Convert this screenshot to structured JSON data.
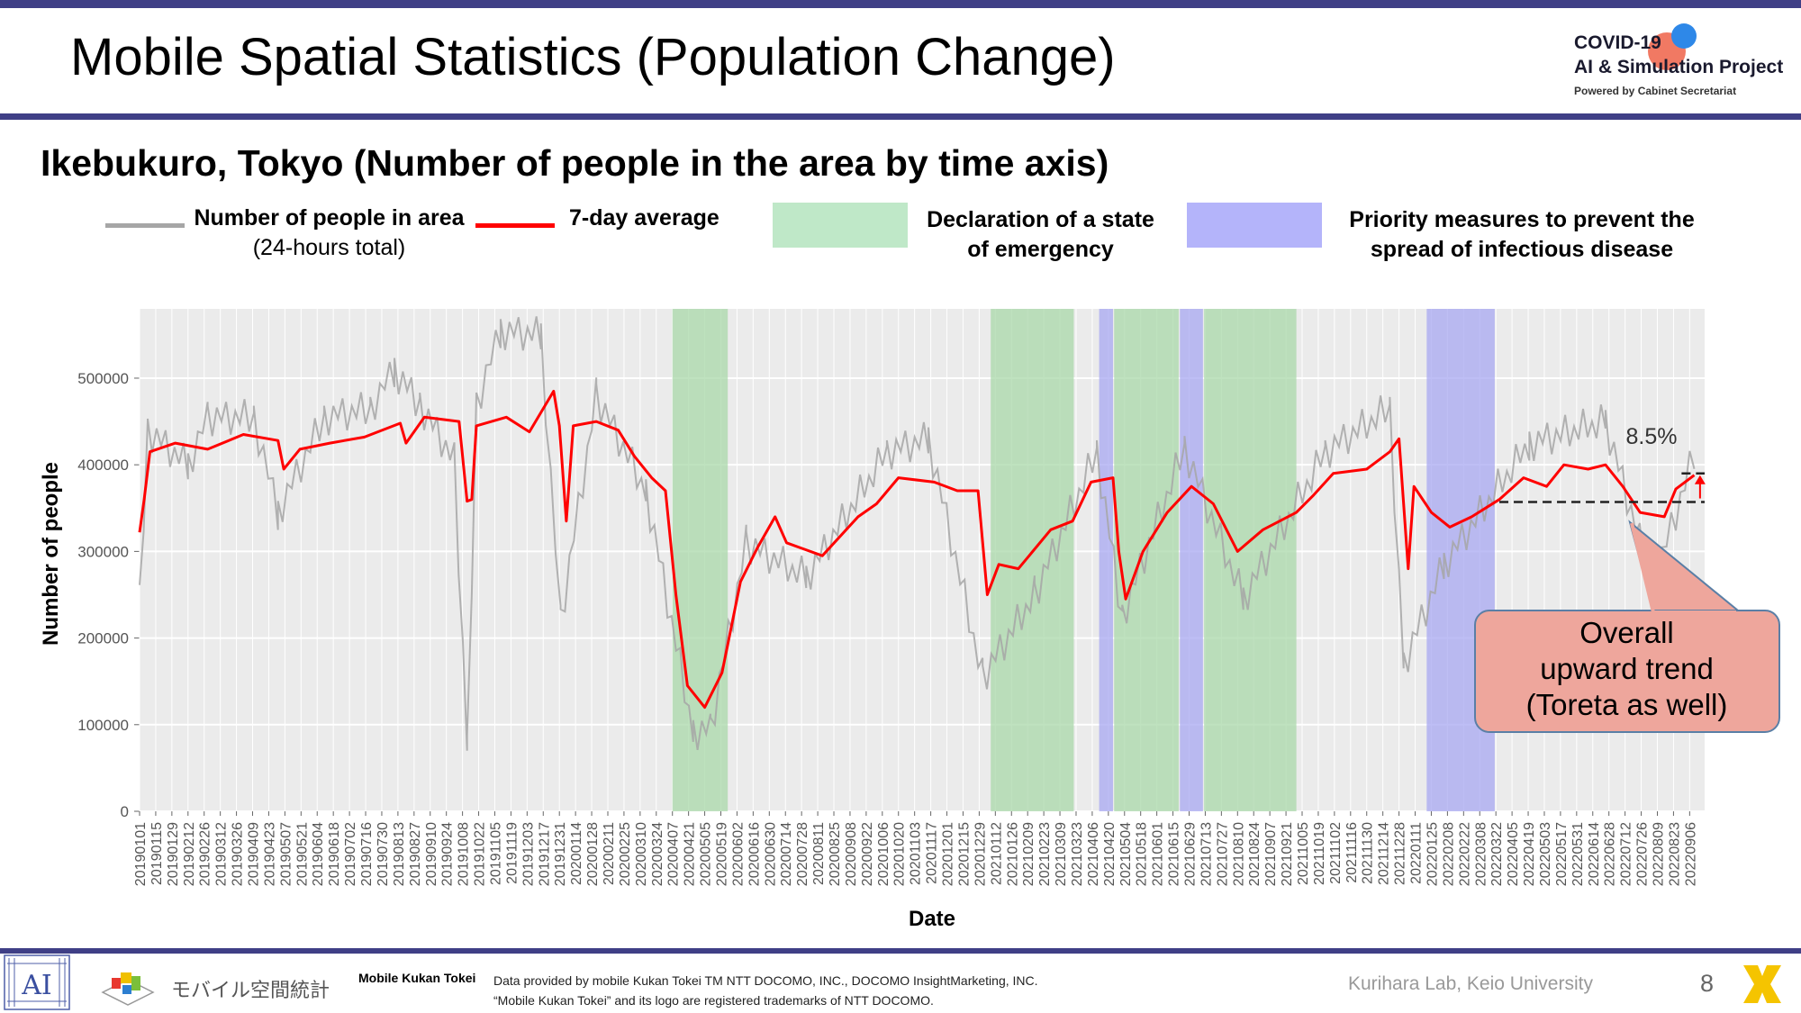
{
  "slide": {
    "title": "Mobile Spatial Statistics (Population Change)",
    "subtitle": "Ikebukuro, Tokyo (Number of people in the area by time axis)",
    "page_number": "8"
  },
  "logo": {
    "line1": "COVID-19",
    "line2": "AI & Simulation Project",
    "line3": "Powered by Cabinet Secretariat"
  },
  "legend": {
    "people_label": "Number of people in area",
    "people_sublabel": "(24-hours total)",
    "avg_label": "7-day average",
    "emergency_line1": "Declaration of a state",
    "emergency_line2": "of emergency",
    "priority_line1": "Priority measures to prevent the",
    "priority_line2": "spread of infectious disease"
  },
  "annotation": {
    "percent": "8.5%",
    "callout_line1": "Overall",
    "callout_line2": "upward trend",
    "callout_line3": "(Toreta as well)"
  },
  "footer": {
    "brand_jp": "モバイル空間統計",
    "brand_en": "Mobile Kukan Tokei",
    "note_line1": "Data provided by mobile Kukan Tokei TM NTT DOCOMO, INC., DOCOMO InsightMarketing, INC.",
    "note_line2": "“Mobile Kukan Tokei” and its logo are registered trademarks of NTT DOCOMO.",
    "lab": "Kurihara Lab, Keio University"
  },
  "colors": {
    "accent_bar": "#3f3f86",
    "daily_line": "#a6a6a6",
    "avg_line": "#ff0000",
    "emergency_band": "#a9d8a9",
    "priority_band": "#a8a8f2",
    "plot_bg": "#ebebeb",
    "callout_fill": "#eea69c",
    "callout_border": "#5a7fa6"
  },
  "chart_data": {
    "type": "line",
    "xlabel": "Date",
    "ylabel": "Number of people",
    "x_start": "2019-01-01",
    "x_end": "2022-09-19",
    "ylim": [
      0,
      580000
    ],
    "yticks": [
      0,
      100000,
      200000,
      300000,
      400000,
      500000
    ],
    "ytick_labels": [
      "0",
      "100000",
      "200000",
      "300000",
      "400000",
      "500000"
    ],
    "xtick_labels": [
      "20190101",
      "20190115",
      "20190129",
      "20190212",
      "20190226",
      "20190312",
      "20190326",
      "20190409",
      "20190423",
      "20190507",
      "20190521",
      "20190604",
      "20190618",
      "20190702",
      "20190716",
      "20190730",
      "20190813",
      "20190827",
      "20190910",
      "20190924",
      "20191008",
      "20191022",
      "20191105",
      "20191119",
      "20191203",
      "20191217",
      "20191231",
      "20200114",
      "20200128",
      "20200211",
      "20200225",
      "20200310",
      "20200324",
      "20200407",
      "20200421",
      "20200505",
      "20200519",
      "20200602",
      "20200616",
      "20200630",
      "20200714",
      "20200728",
      "20200811",
      "20200825",
      "20200908",
      "20200922",
      "20201006",
      "20201020",
      "20201103",
      "20201117",
      "20201201",
      "20201215",
      "20201229",
      "20210112",
      "20210126",
      "20210209",
      "20210223",
      "20210309",
      "20210323",
      "20210406",
      "20210420",
      "20210504",
      "20210518",
      "20210601",
      "20210615",
      "20210629",
      "20210713",
      "20210727",
      "20210810",
      "20210824",
      "20210907",
      "20210921",
      "20211005",
      "20211019",
      "20211102",
      "20211116",
      "20211130",
      "20211214",
      "20211228",
      "20220111",
      "20220125",
      "20220208",
      "20220222",
      "20220308",
      "20220322",
      "20220405",
      "20220419",
      "20220503",
      "20220517",
      "20220531",
      "20220614",
      "20220628",
      "20220712",
      "20220726",
      "20220809",
      "20220823",
      "20220906"
    ],
    "grid": true,
    "shaded_periods": [
      {
        "type": "emergency",
        "start": "2020-04-07",
        "end": "2020-05-25"
      },
      {
        "type": "emergency",
        "start": "2021-01-08",
        "end": "2021-03-21"
      },
      {
        "type": "priority",
        "start": "2021-04-12",
        "end": "2021-04-24"
      },
      {
        "type": "emergency",
        "start": "2021-04-25",
        "end": "2021-06-20"
      },
      {
        "type": "priority",
        "start": "2021-06-21",
        "end": "2021-07-11"
      },
      {
        "type": "emergency",
        "start": "2021-07-12",
        "end": "2021-09-30"
      },
      {
        "type": "priority",
        "start": "2022-01-21",
        "end": "2022-03-21"
      }
    ],
    "series": [
      {
        "name": "7-day average",
        "points": [
          [
            "2019-01-01",
            322000
          ],
          [
            "2019-01-05",
            360000
          ],
          [
            "2019-01-10",
            415000
          ],
          [
            "2019-02-01",
            425000
          ],
          [
            "2019-03-01",
            418000
          ],
          [
            "2019-04-01",
            435000
          ],
          [
            "2019-05-01",
            428000
          ],
          [
            "2019-05-06",
            395000
          ],
          [
            "2019-05-20",
            418000
          ],
          [
            "2019-06-15",
            425000
          ],
          [
            "2019-07-15",
            432000
          ],
          [
            "2019-08-15",
            448000
          ],
          [
            "2019-08-20",
            425000
          ],
          [
            "2019-09-05",
            455000
          ],
          [
            "2019-10-05",
            450000
          ],
          [
            "2019-10-12",
            358000
          ],
          [
            "2019-10-16",
            360000
          ],
          [
            "2019-10-20",
            445000
          ],
          [
            "2019-11-15",
            455000
          ],
          [
            "2019-12-05",
            438000
          ],
          [
            "2019-12-26",
            485000
          ],
          [
            "2019-12-31",
            445000
          ],
          [
            "2020-01-06",
            335000
          ],
          [
            "2020-01-12",
            445000
          ],
          [
            "2020-02-01",
            450000
          ],
          [
            "2020-02-20",
            440000
          ],
          [
            "2020-03-05",
            410000
          ],
          [
            "2020-03-20",
            385000
          ],
          [
            "2020-04-01",
            370000
          ],
          [
            "2020-04-10",
            250000
          ],
          [
            "2020-04-20",
            145000
          ],
          [
            "2020-05-05",
            120000
          ],
          [
            "2020-05-20",
            160000
          ],
          [
            "2020-06-05",
            265000
          ],
          [
            "2020-06-20",
            305000
          ],
          [
            "2020-07-05",
            340000
          ],
          [
            "2020-07-15",
            310000
          ],
          [
            "2020-08-15",
            295000
          ],
          [
            "2020-09-15",
            340000
          ],
          [
            "2020-10-01",
            355000
          ],
          [
            "2020-10-20",
            385000
          ],
          [
            "2020-11-20",
            380000
          ],
          [
            "2020-12-10",
            370000
          ],
          [
            "2020-12-28",
            370000
          ],
          [
            "2021-01-05",
            250000
          ],
          [
            "2021-01-15",
            285000
          ],
          [
            "2021-02-01",
            280000
          ],
          [
            "2021-03-01",
            325000
          ],
          [
            "2021-03-20",
            335000
          ],
          [
            "2021-04-05",
            380000
          ],
          [
            "2021-04-24",
            385000
          ],
          [
            "2021-04-29",
            300000
          ],
          [
            "2021-05-05",
            245000
          ],
          [
            "2021-05-20",
            300000
          ],
          [
            "2021-06-10",
            345000
          ],
          [
            "2021-07-01",
            375000
          ],
          [
            "2021-07-20",
            355000
          ],
          [
            "2021-08-10",
            300000
          ],
          [
            "2021-09-01",
            325000
          ],
          [
            "2021-09-30",
            345000
          ],
          [
            "2021-10-15",
            365000
          ],
          [
            "2021-11-01",
            390000
          ],
          [
            "2021-11-30",
            395000
          ],
          [
            "2021-12-20",
            415000
          ],
          [
            "2021-12-28",
            430000
          ],
          [
            "2022-01-05",
            280000
          ],
          [
            "2022-01-10",
            375000
          ],
          [
            "2022-01-25",
            345000
          ],
          [
            "2022-02-10",
            328000
          ],
          [
            "2022-03-01",
            340000
          ],
          [
            "2022-03-25",
            360000
          ],
          [
            "2022-04-15",
            385000
          ],
          [
            "2022-05-05",
            375000
          ],
          [
            "2022-05-20",
            400000
          ],
          [
            "2022-06-10",
            395000
          ],
          [
            "2022-06-25",
            400000
          ],
          [
            "2022-07-10",
            375000
          ],
          [
            "2022-07-25",
            345000
          ],
          [
            "2022-08-15",
            340000
          ],
          [
            "2022-08-25",
            372000
          ],
          [
            "2022-09-10",
            388000
          ]
        ]
      },
      {
        "name": "Number of people in area",
        "points": [
          [
            "2019-01-01",
            248000
          ],
          [
            "2019-01-08",
            440000
          ],
          [
            "2019-02-12",
            400000
          ],
          [
            "2019-03-01",
            455000
          ],
          [
            "2019-04-10",
            455000
          ],
          [
            "2019-05-01",
            345000
          ],
          [
            "2019-06-10",
            455000
          ],
          [
            "2019-07-20",
            465000
          ],
          [
            "2019-08-10",
            510000
          ],
          [
            "2019-09-01",
            470000
          ],
          [
            "2019-10-01",
            405000
          ],
          [
            "2019-10-12",
            75000
          ],
          [
            "2019-10-20",
            470000
          ],
          [
            "2019-11-10",
            555000
          ],
          [
            "2019-12-15",
            550000
          ],
          [
            "2020-01-01",
            220000
          ],
          [
            "2020-02-01",
            480000
          ],
          [
            "2020-03-15",
            370000
          ],
          [
            "2020-04-25",
            92000
          ],
          [
            "2020-05-10",
            95000
          ],
          [
            "2020-06-10",
            310000
          ],
          [
            "2020-08-01",
            270000
          ],
          [
            "2020-10-10",
            415000
          ],
          [
            "2020-11-15",
            430000
          ],
          [
            "2021-01-01",
            155000
          ],
          [
            "2021-02-15",
            250000
          ],
          [
            "2021-04-10",
            415000
          ],
          [
            "2021-05-02",
            225000
          ],
          [
            "2021-06-25",
            420000
          ],
          [
            "2021-08-15",
            245000
          ],
          [
            "2021-10-25",
            415000
          ],
          [
            "2021-12-20",
            465000
          ],
          [
            "2022-01-01",
            170000
          ],
          [
            "2022-02-05",
            285000
          ],
          [
            "2022-04-20",
            425000
          ],
          [
            "2022-06-25",
            450000
          ],
          [
            "2022-08-05",
            260000
          ],
          [
            "2022-09-10",
            412000
          ]
        ]
      }
    ],
    "reference_lines": [
      {
        "label": "",
        "y": 357000,
        "from": "2022-03-25",
        "to": "2022-09-19"
      },
      {
        "label": "",
        "y": 390000,
        "from": "2022-08-30",
        "to": "2022-09-19"
      }
    ]
  }
}
